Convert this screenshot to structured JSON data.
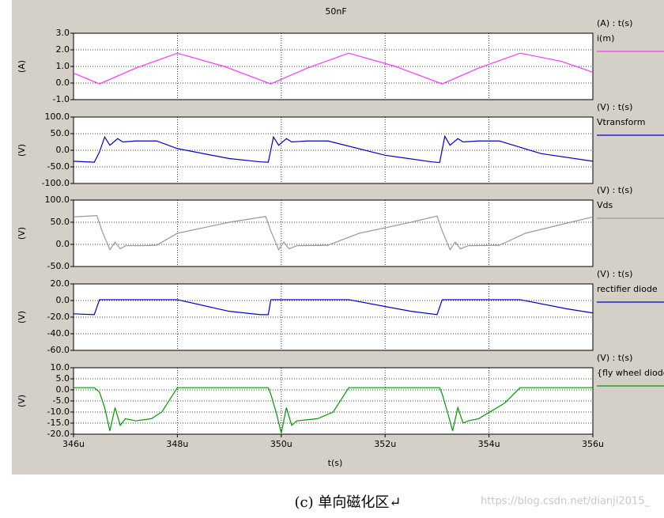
{
  "title": "50nF",
  "x_axis": {
    "xlabel": "t(s)",
    "xlim": [
      346,
      356
    ],
    "xticks": [
      {
        "value": 346,
        "label": "346u"
      },
      {
        "value": 348,
        "label": "348u"
      },
      {
        "value": 350,
        "label": "350u"
      },
      {
        "value": 352,
        "label": "352u"
      },
      {
        "value": 354,
        "label": "354u"
      },
      {
        "value": 356,
        "label": "356u"
      }
    ]
  },
  "chart_data": [
    {
      "type": "line",
      "axis_label": "(A) : t(s)",
      "ylabel": "(A)",
      "ylim": [
        -1,
        3
      ],
      "grid": true,
      "yticks": [
        {
          "value": -1,
          "label": "-1.0"
        },
        {
          "value": 0,
          "label": "0.0"
        },
        {
          "value": 1,
          "label": "1.0"
        },
        {
          "value": 2,
          "label": "2.0"
        },
        {
          "value": 3,
          "label": "3.0"
        }
      ],
      "x": [
        346,
        346.5,
        347.2,
        348,
        348.9,
        349.8,
        350.5,
        351.3,
        352.2,
        353.1,
        353.8,
        354.6,
        355.4,
        356
      ],
      "series": [
        {
          "name": "i(m)",
          "color": "#ff33ff",
          "values": [
            0.6,
            -0.05,
            0.9,
            1.8,
            1.0,
            -0.05,
            0.9,
            1.8,
            1.0,
            -0.05,
            0.9,
            1.8,
            1.3,
            0.65
          ]
        }
      ]
    },
    {
      "type": "line",
      "axis_label": "(V) : t(s)",
      "ylabel": "(V)",
      "ylim": [
        -100,
        100
      ],
      "grid": true,
      "yticks": [
        {
          "value": -100,
          "label": "-100.0"
        },
        {
          "value": -50,
          "label": "-50.0"
        },
        {
          "value": 0,
          "label": "0.0"
        },
        {
          "value": 50,
          "label": "50.0"
        },
        {
          "value": 100,
          "label": "100.0"
        }
      ],
      "x": [
        346,
        346.4,
        346.5,
        346.6,
        346.7,
        346.85,
        346.95,
        347.2,
        347.6,
        348,
        349,
        349.6,
        349.75,
        349.85,
        349.95,
        350.1,
        350.2,
        350.5,
        350.9,
        352,
        352.9,
        353.05,
        353.15,
        353.25,
        353.4,
        353.5,
        353.8,
        354.2,
        355,
        356
      ],
      "series": [
        {
          "name": "Vtransform",
          "color": "#0000cc",
          "values": [
            -33,
            -36,
            -5,
            40,
            15,
            35,
            25,
            28,
            28,
            5,
            -25,
            -35,
            -36,
            40,
            15,
            35,
            25,
            28,
            28,
            -15,
            -35,
            -37,
            42,
            15,
            35,
            25,
            28,
            28,
            -10,
            -33
          ]
        }
      ]
    },
    {
      "type": "line",
      "axis_label": "(V) : t(s)",
      "ylabel": "(V)",
      "ylim": [
        -50,
        100
      ],
      "grid": true,
      "yticks": [
        {
          "value": -50,
          "label": "-50.0"
        },
        {
          "value": 0,
          "label": "0.0"
        },
        {
          "value": 50,
          "label": "50.0"
        },
        {
          "value": 100,
          "label": "100.0"
        }
      ],
      "x": [
        346,
        346.45,
        346.55,
        346.7,
        346.8,
        346.9,
        347,
        347.3,
        347.6,
        348,
        349,
        349.7,
        349.8,
        349.95,
        350.05,
        350.15,
        350.3,
        350.9,
        351.5,
        352.5,
        353,
        353.1,
        353.25,
        353.35,
        353.45,
        353.6,
        354.2,
        354.7,
        355.5,
        356
      ],
      "series": [
        {
          "name": "Vds",
          "color": "#999999",
          "values": [
            62,
            65,
            30,
            -12,
            5,
            -10,
            -3,
            -3,
            -2,
            25,
            50,
            63,
            30,
            -12,
            5,
            -10,
            -3,
            -2,
            25,
            50,
            64,
            30,
            -12,
            5,
            -10,
            -3,
            -2,
            25,
            48,
            62
          ]
        }
      ]
    },
    {
      "type": "line",
      "axis_label": "(V) : t(s)",
      "ylabel": "(V)",
      "ylim": [
        -60,
        20
      ],
      "grid": true,
      "yticks": [
        {
          "value": -60,
          "label": "-60.0"
        },
        {
          "value": -40,
          "label": "-40.0"
        },
        {
          "value": -20,
          "label": "-20.0"
        },
        {
          "value": 0,
          "label": "0.0"
        },
        {
          "value": 20,
          "label": "20.0"
        }
      ],
      "x": [
        346,
        346.4,
        346.5,
        348,
        349,
        349.6,
        349.75,
        349.8,
        351.3,
        352.5,
        353,
        353.1,
        354.6,
        355.5,
        356
      ],
      "series": [
        {
          "name": "rectifier diode",
          "color": "#0000cc",
          "values": [
            -16,
            -17,
            1,
            1,
            -13,
            -17,
            -17,
            1,
            1,
            -13,
            -17,
            1,
            1,
            -10,
            -15
          ]
        }
      ]
    },
    {
      "type": "line",
      "axis_label": "(V) : t(s)",
      "ylabel": "(V)",
      "ylim": [
        -20,
        10
      ],
      "grid": true,
      "yticks": [
        {
          "value": -20,
          "label": "-20.0"
        },
        {
          "value": -15,
          "label": "-15.0"
        },
        {
          "value": -10,
          "label": "-10.0"
        },
        {
          "value": -5,
          "label": "-5.0"
        },
        {
          "value": 0,
          "label": "0.0"
        },
        {
          "value": 5,
          "label": "5.0"
        },
        {
          "value": 10,
          "label": "10.0"
        }
      ],
      "x": [
        346,
        346.4,
        346.5,
        346.6,
        346.7,
        346.8,
        346.9,
        347,
        347.2,
        347.5,
        347.7,
        348,
        349.75,
        349.8,
        349.9,
        350,
        350.1,
        350.2,
        350.3,
        350.7,
        351,
        351.3,
        353.05,
        353.1,
        353.2,
        353.3,
        353.4,
        353.5,
        353.6,
        353.8,
        354.3,
        354.6,
        356
      ],
      "series": [
        {
          "name": "{fly wheel diode",
          "color": "#009900",
          "values": [
            1,
            1,
            -1,
            -8,
            -18.5,
            -8,
            -16,
            -13,
            -14,
            -13,
            -10,
            1,
            1,
            -2,
            -10,
            -19.5,
            -8,
            -16,
            -14,
            -13,
            -10,
            1,
            1,
            -2,
            -10,
            -18.5,
            -8,
            -15,
            -14,
            -13,
            -6,
            1,
            1
          ]
        }
      ]
    }
  ],
  "caption": "(c) 单向磁化区↵",
  "watermark": "https://blog.csdn.net/dianji2015_"
}
